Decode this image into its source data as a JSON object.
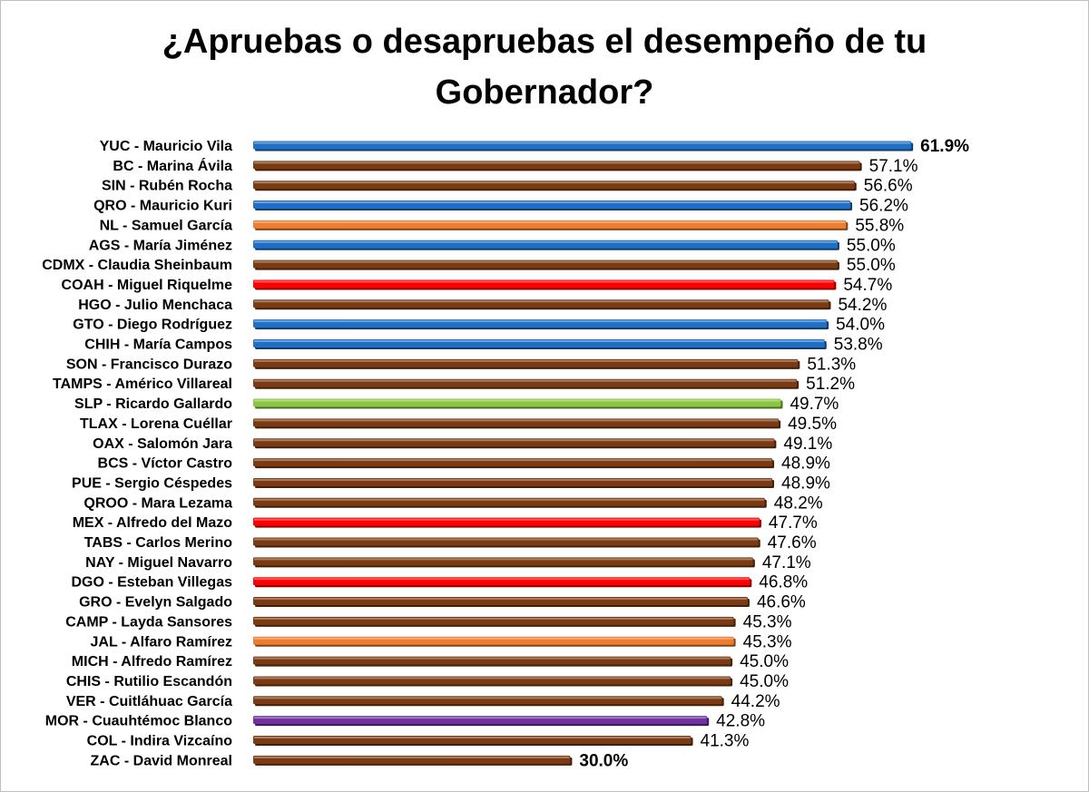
{
  "chart_data": {
    "type": "bar",
    "orientation": "horizontal",
    "title_lines": [
      "¿Apruebas o desapruebas el desempeño de tu",
      "Gobernador?"
    ],
    "value_suffix": "%",
    "xlim": [
      0,
      62
    ],
    "grid": false,
    "legend": "none",
    "party_colors": {
      "blue": "#1f6fc5",
      "brown": "#7b3b12",
      "orange": "#ed7d31",
      "red": "#ff0000",
      "green": "#8ac642",
      "purple": "#7030a0"
    },
    "categories": [
      "YUC - Mauricio Vila",
      "BC - Marina Ávila",
      "SIN - Rubén Rocha",
      "QRO - Mauricio Kuri",
      "NL - Samuel García",
      "AGS - María Jiménez",
      "CDMX - Claudia Sheinbaum",
      "COAH - Miguel Riquelme",
      "HGO - Julio Menchaca",
      "GTO - Diego Rodríguez",
      "CHIH - María Campos",
      "SON - Francisco Durazo",
      "TAMPS - Américo Villareal",
      "SLP - Ricardo Gallardo",
      "TLAX - Lorena Cuéllar",
      "OAX - Salomón Jara",
      "BCS - Víctor Castro",
      "PUE - Sergio Céspedes",
      "QROO - Mara Lezama",
      "MEX - Alfredo del Mazo",
      "TABS - Carlos Merino",
      "NAY - Miguel Navarro",
      "DGO - Esteban Villegas",
      "GRO - Evelyn Salgado",
      "CAMP - Layda Sansores",
      "JAL - Alfaro Ramírez",
      "MICH - Alfredo Ramírez",
      "CHIS - Rutilio Escandón",
      "VER - Cuitláhuac García",
      "MOR - Cuauhtémoc Blanco",
      "COL - Indira Vizcaíno",
      "ZAC - David Monreal"
    ],
    "values": [
      61.9,
      57.1,
      56.6,
      56.2,
      55.8,
      55.0,
      55.0,
      54.7,
      54.2,
      54.0,
      53.8,
      51.3,
      51.2,
      49.7,
      49.5,
      49.1,
      48.9,
      48.9,
      48.2,
      47.7,
      47.6,
      47.1,
      46.8,
      46.6,
      45.3,
      45.3,
      45.0,
      45.0,
      44.2,
      42.8,
      41.3,
      30.0
    ],
    "value_labels": [
      "61.9%",
      "57.1%",
      "56.6%",
      "56.2%",
      "55.8%",
      "55.0%",
      "55.0%",
      "54.7%",
      "54.2%",
      "54.0%",
      "53.8%",
      "51.3%",
      "51.2%",
      "49.7%",
      "49.5%",
      "49.1%",
      "48.9%",
      "48.9%",
      "48.2%",
      "47.7%",
      "47.6%",
      "47.1%",
      "46.8%",
      "46.6%",
      "45.3%",
      "45.3%",
      "45.0%",
      "45.0%",
      "44.2%",
      "42.8%",
      "41.3%",
      "30.0%"
    ],
    "bar_colors": [
      "blue",
      "brown",
      "brown",
      "blue",
      "orange",
      "blue",
      "brown",
      "red",
      "brown",
      "blue",
      "blue",
      "brown",
      "brown",
      "green",
      "brown",
      "brown",
      "brown",
      "brown",
      "brown",
      "red",
      "brown",
      "brown",
      "red",
      "brown",
      "brown",
      "orange",
      "brown",
      "brown",
      "brown",
      "purple",
      "brown",
      "brown"
    ],
    "bold_labels": [
      true,
      false,
      false,
      false,
      false,
      false,
      false,
      false,
      false,
      false,
      false,
      false,
      false,
      false,
      false,
      false,
      false,
      false,
      false,
      false,
      false,
      false,
      false,
      false,
      false,
      false,
      false,
      false,
      false,
      false,
      false,
      true
    ]
  }
}
